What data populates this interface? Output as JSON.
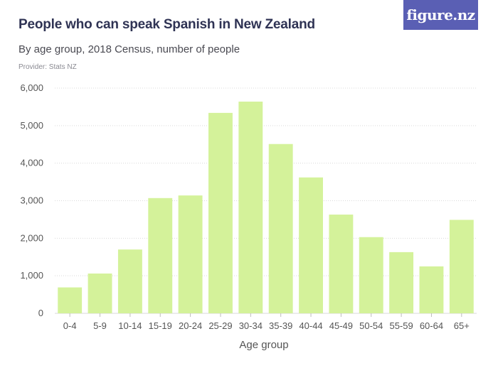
{
  "header": {
    "title": "People who can speak Spanish in New Zealand",
    "subtitle": "By age group, 2018 Census, number of people",
    "provider": "Provider: Stats NZ",
    "logo_text": "figure.nz"
  },
  "colors": {
    "bar": "#d4f29a",
    "gridline": "#d9d9d9",
    "logo_bg": "#5a5fb4",
    "title": "#2f3354"
  },
  "chart_data": {
    "type": "bar",
    "title": "People who can speak Spanish in New Zealand",
    "subtitle": "By age group, 2018 Census, number of people",
    "xlabel": "Age group",
    "ylabel": "",
    "categories": [
      "0-4",
      "5-9",
      "10-14",
      "15-19",
      "20-24",
      "25-29",
      "30-34",
      "35-39",
      "40-44",
      "45-49",
      "50-54",
      "55-59",
      "60-64",
      "65+"
    ],
    "values": [
      690,
      1060,
      1700,
      3070,
      3140,
      5340,
      5640,
      4510,
      3620,
      2630,
      2030,
      1630,
      1250,
      2490
    ],
    "ylim": [
      0,
      6000
    ],
    "yticks": [
      0,
      1000,
      2000,
      3000,
      4000,
      5000,
      6000
    ],
    "ytick_labels": [
      "0",
      "1,000",
      "2,000",
      "3,000",
      "4,000",
      "5,000",
      "6,000"
    ],
    "grid": true,
    "legend": "none"
  }
}
